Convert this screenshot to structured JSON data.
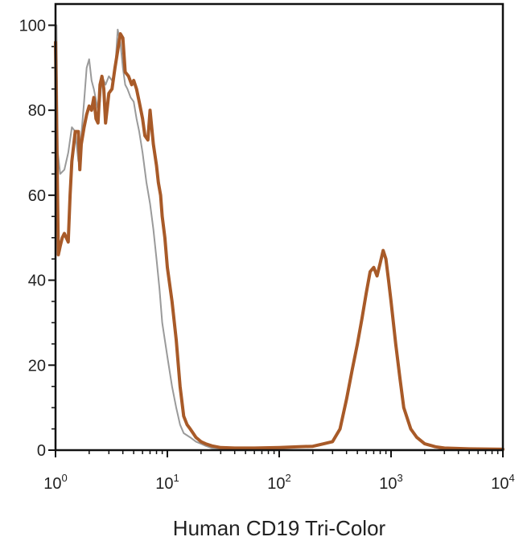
{
  "chart_data": {
    "type": "line",
    "title": "",
    "xlabel": "Human CD19  Tri-Color",
    "ylabel": "",
    "x_scale": "log",
    "xlim": [
      1,
      10000
    ],
    "ylim": [
      0,
      105
    ],
    "grid": false,
    "legend": "none",
    "y_ticks": [
      {
        "value": 0,
        "label": "0"
      },
      {
        "value": 20,
        "label": "20"
      },
      {
        "value": 40,
        "label": "40"
      },
      {
        "value": 60,
        "label": "60"
      },
      {
        "value": 80,
        "label": "80"
      },
      {
        "value": 100,
        "label": "100"
      }
    ],
    "x_ticks": [
      {
        "value": 1,
        "base": "10",
        "exp": "0"
      },
      {
        "value": 10,
        "base": "10",
        "exp": "1"
      },
      {
        "value": 100,
        "base": "10",
        "exp": "2"
      },
      {
        "value": 1000,
        "base": "10",
        "exp": "3"
      },
      {
        "value": 10000,
        "base": "10",
        "exp": "4"
      }
    ],
    "series": [
      {
        "color": "#9a9a9a",
        "width": 2,
        "x": [
          1.0,
          1.02,
          1.05,
          1.1,
          1.2,
          1.3,
          1.4,
          1.5,
          1.6,
          1.7,
          1.8,
          1.9,
          2.0,
          2.1,
          2.2,
          2.4,
          2.5,
          2.6,
          2.8,
          3.0,
          3.2,
          3.4,
          3.6,
          3.8,
          4.0,
          4.2,
          4.4,
          4.7,
          5.0,
          5.3,
          5.6,
          6.0,
          6.5,
          7.0,
          7.5,
          8.0,
          8.5,
          9.0,
          10.0,
          11.0,
          12.0,
          13.0,
          14.0,
          16.0,
          18.0,
          20.0,
          22.0,
          25.0,
          30.0,
          40.0,
          60.0,
          100.0,
          200.0,
          500.0,
          1000.0,
          3000.0,
          10000.0
        ],
        "y": [
          100,
          100,
          70,
          65,
          66,
          70,
          76,
          75,
          68,
          74,
          82,
          90,
          92,
          87,
          85,
          80,
          82,
          88,
          86,
          88,
          87,
          89,
          99,
          96,
          90,
          86,
          85,
          83,
          82,
          78,
          75,
          70,
          63,
          58,
          52,
          45,
          38,
          30,
          22,
          15,
          10,
          6,
          4,
          3,
          2,
          1.5,
          1,
          0.5,
          0.3,
          0.2,
          0.2,
          0.1,
          0.1,
          0.1,
          0.1,
          0.1,
          0.1
        ]
      },
      {
        "color": "#a85a28",
        "width": 4,
        "x": [
          1.0,
          1.03,
          1.06,
          1.1,
          1.15,
          1.2,
          1.3,
          1.35,
          1.4,
          1.5,
          1.6,
          1.65,
          1.7,
          1.8,
          1.9,
          2.0,
          2.1,
          2.2,
          2.3,
          2.4,
          2.5,
          2.6,
          2.7,
          2.8,
          3.0,
          3.2,
          3.4,
          3.6,
          3.8,
          4.0,
          4.2,
          4.5,
          4.8,
          5.0,
          5.3,
          5.6,
          6.0,
          6.3,
          6.7,
          7.0,
          7.5,
          8.0,
          8.3,
          8.7,
          9.0,
          9.5,
          10.0,
          11.0,
          12.0,
          13.0,
          14.0,
          15.0,
          16.0,
          17.0,
          18.0,
          20.0,
          22.0,
          25.0,
          30.0,
          40.0,
          60.0,
          100.0,
          150.0,
          200.0,
          250.0,
          300.0,
          350.0,
          400.0,
          450.0,
          500.0,
          550.0,
          600.0,
          650.0,
          700.0,
          750.0,
          800.0,
          850.0,
          900.0,
          950.0,
          1000.0,
          1100.0,
          1200.0,
          1300.0,
          1500.0,
          1700.0,
          2000.0,
          2500.0,
          3000.0,
          5000.0,
          10000.0
        ],
        "y": [
          96,
          70,
          46,
          48,
          50,
          51,
          49,
          60,
          68,
          75,
          75,
          66,
          72,
          76,
          79,
          81,
          80,
          83,
          78,
          77,
          86,
          88,
          85,
          77,
          84,
          85,
          90,
          94,
          98,
          97,
          89,
          88,
          86,
          87,
          85,
          82,
          78,
          74,
          73,
          80,
          72,
          67,
          63,
          60,
          55,
          50,
          43,
          35,
          26,
          15,
          8,
          6,
          5,
          4,
          3,
          2,
          1.5,
          1,
          0.6,
          0.5,
          0.5,
          0.6,
          0.8,
          0.9,
          1.5,
          2,
          5,
          12,
          19,
          25,
          31,
          37,
          42,
          43,
          41,
          44,
          47,
          45,
          40,
          35,
          25,
          17,
          10,
          5,
          3,
          1.5,
          0.8,
          0.5,
          0.3,
          0.2
        ]
      }
    ]
  }
}
